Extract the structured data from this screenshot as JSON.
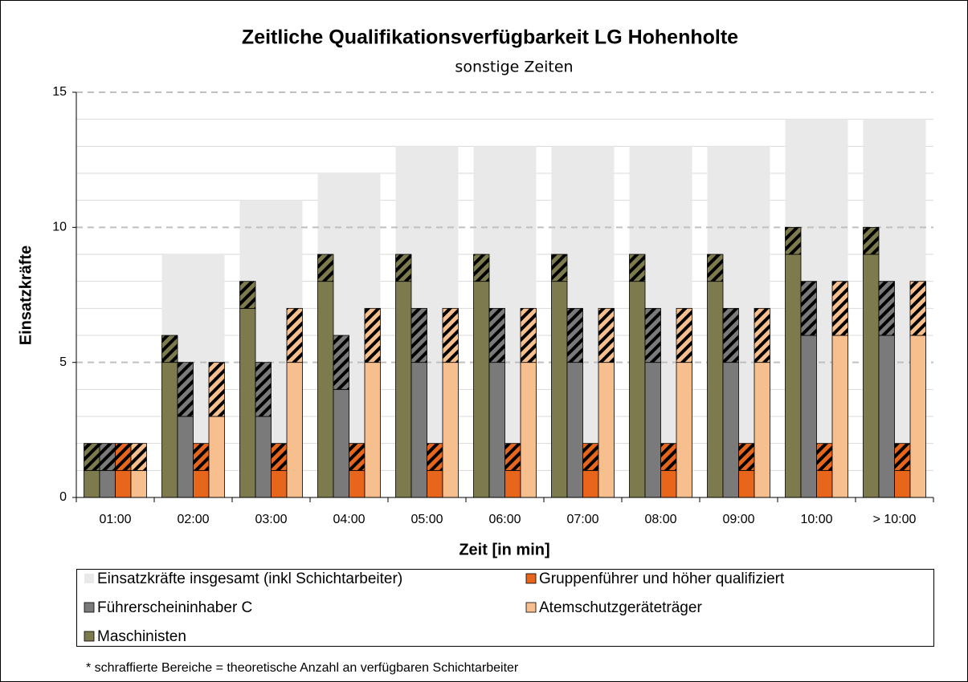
{
  "chart_data": {
    "type": "bar",
    "title": "Zeitliche Qualifikationsverfügbarkeit LG Hohenholte",
    "subtitle": "sonstige Zeiten",
    "x_label": "Zeit [in min]",
    "y_label": "Einsatzkräfte",
    "footnote": "* schraffierte  Bereiche = theoretische Anzahl an verfügbaren  Schichtarbeiter",
    "categories": [
      "01:00",
      "02:00",
      "03:00",
      "04:00",
      "05:00",
      "06:00",
      "07:00",
      "08:00",
      "09:00",
      "10:00",
      "> 10:00"
    ],
    "ylim": [
      0,
      15
    ],
    "yticks": [
      0,
      5,
      10,
      15
    ],
    "yticks_minor": [
      1,
      2,
      3,
      4,
      6,
      7,
      8,
      9,
      11,
      12,
      13,
      14
    ],
    "grid": true,
    "series": [
      {
        "name": "Einsatzkräfte insgesamt (inkl Schichtarbeiter)",
        "color": "#e9e9e9",
        "values": [
          2,
          9,
          11,
          12,
          13,
          13,
          13,
          13,
          13,
          14,
          14
        ]
      },
      {
        "name": "Maschinisten",
        "color": "#7d7b4e",
        "values": [
          1,
          5,
          7,
          8,
          8,
          8,
          8,
          8,
          8,
          9,
          9
        ],
        "shift_values": [
          1,
          1,
          1,
          1,
          1,
          1,
          1,
          1,
          1,
          1,
          1
        ]
      },
      {
        "name": "Führerscheininhaber C",
        "color": "#7a7a7a",
        "values": [
          1,
          3,
          3,
          4,
          5,
          5,
          5,
          5,
          5,
          6,
          6
        ],
        "shift_values": [
          1,
          2,
          2,
          2,
          2,
          2,
          2,
          2,
          2,
          2,
          2
        ]
      },
      {
        "name": "Gruppenführer und höher qualifiziert",
        "color": "#e8661c",
        "values": [
          1,
          1,
          1,
          1,
          1,
          1,
          1,
          1,
          1,
          1,
          1
        ],
        "shift_values": [
          1,
          1,
          1,
          1,
          1,
          1,
          1,
          1,
          1,
          1,
          1
        ]
      },
      {
        "name": "Atemschutzgeräteträger",
        "color": "#f8bf8e",
        "values": [
          1,
          3,
          5,
          5,
          5,
          5,
          5,
          5,
          5,
          6,
          6
        ],
        "shift_values": [
          1,
          2,
          2,
          2,
          2,
          2,
          2,
          2,
          2,
          2,
          2
        ]
      }
    ]
  }
}
